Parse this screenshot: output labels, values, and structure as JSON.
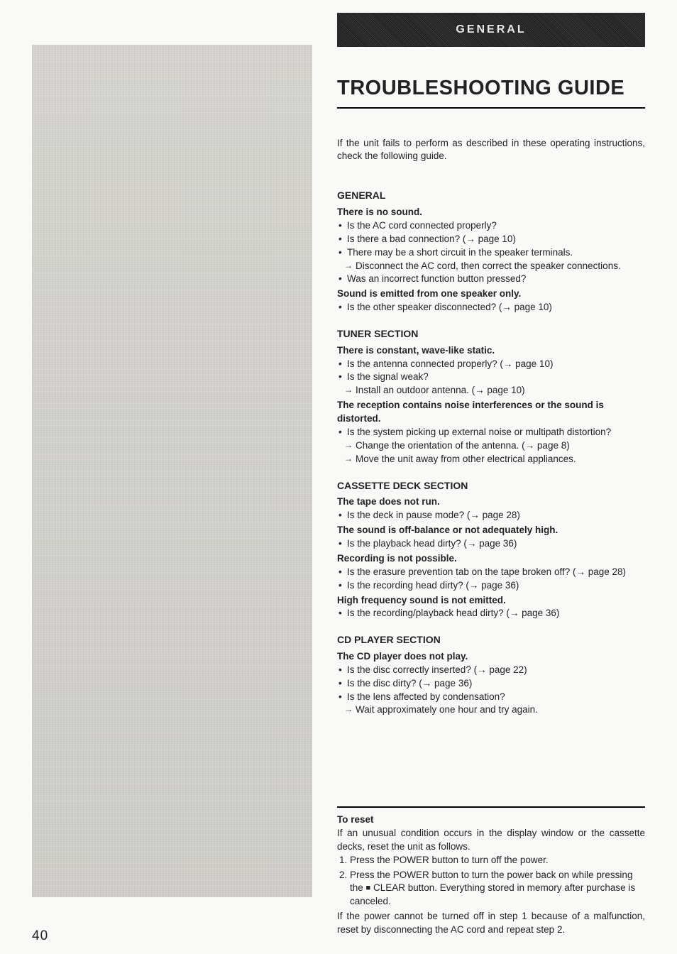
{
  "page_number": "40",
  "banner": "GENERAL",
  "title": "TROUBLESHOOTING GUIDE",
  "intro": "If the unit fails to perform as described in these operating instructions, check the following guide.",
  "sections": {
    "general": {
      "heading": "GENERAL",
      "sym1": "There is no sound.",
      "sym1_b1": "Is the AC cord connected properly?",
      "sym1_b2": "Is there a bad connection? (→ page 10)",
      "sym1_b3": "There may be a short circuit in the speaker terminals.",
      "sym1_b3_sub": "Disconnect the AC cord, then correct the speaker connections.",
      "sym1_b4": "Was an incorrect function button pressed?",
      "sym2": "Sound is emitted from one speaker only.",
      "sym2_b1": "Is the other speaker disconnected?  (→ page 10)"
    },
    "tuner": {
      "heading": "TUNER SECTION",
      "sym1": "There is constant, wave-like static.",
      "sym1_b1": "Is the antenna connected properly? (→ page 10)",
      "sym1_b2": "Is the signal weak?",
      "sym1_b2_sub": "Install an outdoor antenna. (→ page 10)",
      "sym2": "The reception contains noise interferences or the sound is distorted.",
      "sym2_b1": "Is the system picking up external noise or multipath distortion?",
      "sym2_b1_sub1": "Change the orientation of the antenna. (→ page 8)",
      "sym2_b1_sub2": "Move the unit away from other electrical appliances."
    },
    "cassette": {
      "heading": "CASSETTE DECK SECTION",
      "sym1": "The tape does not run.",
      "sym1_b1": "Is the deck in pause mode? (→ page 28)",
      "sym2": "The sound is off-balance or not adequately high.",
      "sym2_b1": "Is the playback head dirty? (→ page 36)",
      "sym3": "Recording is not possible.",
      "sym3_b1": "Is the erasure prevention tab on the tape broken off? (→ page 28)",
      "sym3_b2": "Is the recording head dirty? (→ page 36)",
      "sym4": "High frequency sound is not emitted.",
      "sym4_b1": "Is the recording/playback head dirty? (→ page 36)"
    },
    "cd": {
      "heading": "CD PLAYER SECTION",
      "sym1": "The CD player does not play.",
      "sym1_b1": "Is the disc correctly inserted? (→ page 22)",
      "sym1_b2": "Is the disc dirty? (→ page 36)",
      "sym1_b3": "Is the lens affected by condensation?",
      "sym1_b3_sub": "Wait approximately one hour and try again."
    }
  },
  "reset": {
    "heading": "To reset",
    "intro": "If an unusual condition occurs in the display window or the cassette decks, reset the unit as follows.",
    "step1": "Press the POWER button to turn off the power.",
    "step2a": "Press the POWER button to turn the power back on while pressing the ",
    "step2b": " CLEAR button. Everything stored in memory after purchase is canceled.",
    "note": "If the power cannot be turned off in step 1 because of a malfunction, reset by disconnecting the AC cord and repeat step 2."
  }
}
